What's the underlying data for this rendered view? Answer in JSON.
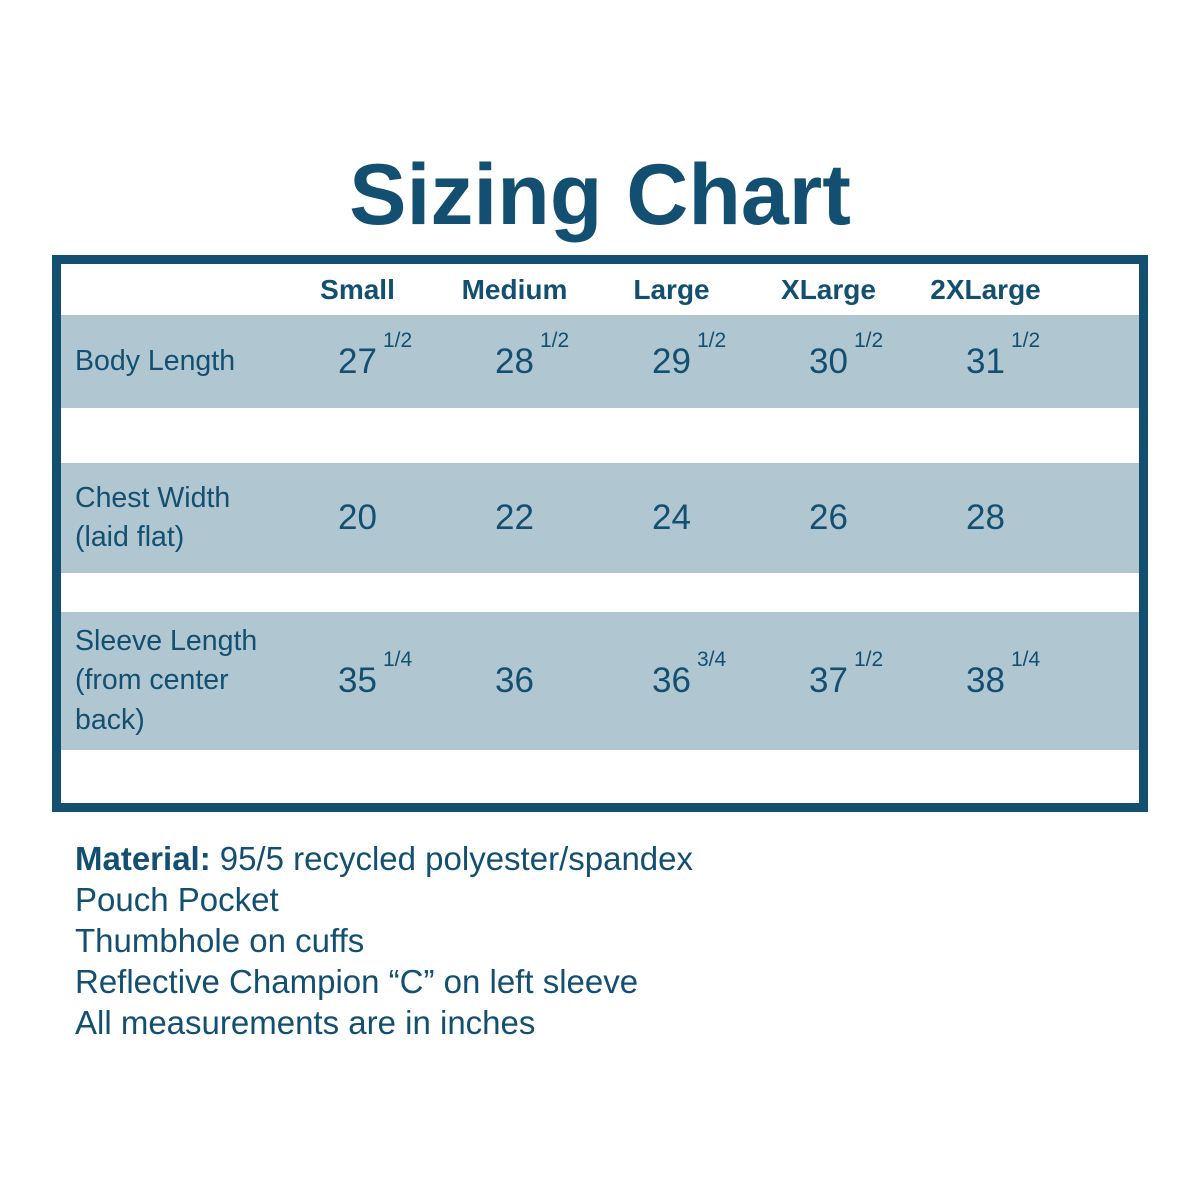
{
  "title": "Sizing Chart",
  "colors": {
    "primary": "#134F70",
    "row_shade": "#B0C7D2",
    "background": "#FFFFFF"
  },
  "chart_data": {
    "type": "table",
    "title": "Sizing Chart",
    "unit": "inches",
    "columns": [
      "Small",
      "Medium",
      "Large",
      "XLarge",
      "2XLarge"
    ],
    "rows": [
      {
        "label": "Body Length",
        "cells": [
          {
            "whole": "27",
            "frac": "1/2",
            "display": "27 1/2"
          },
          {
            "whole": "28",
            "frac": "1/2",
            "display": "28 1/2"
          },
          {
            "whole": "29",
            "frac": "1/2",
            "display": "29 1/2"
          },
          {
            "whole": "30",
            "frac": "1/2",
            "display": "30 1/2"
          },
          {
            "whole": "31",
            "frac": "1/2",
            "display": "31 1/2"
          }
        ],
        "values_numeric": [
          27.5,
          28.5,
          29.5,
          30.5,
          31.5
        ]
      },
      {
        "label": "Chest Width (laid flat)",
        "cells": [
          {
            "whole": "20",
            "frac": "",
            "display": "20"
          },
          {
            "whole": "22",
            "frac": "",
            "display": "22"
          },
          {
            "whole": "24",
            "frac": "",
            "display": "24"
          },
          {
            "whole": "26",
            "frac": "",
            "display": "26"
          },
          {
            "whole": "28",
            "frac": "",
            "display": "28"
          }
        ],
        "values_numeric": [
          20,
          22,
          24,
          26,
          28
        ]
      },
      {
        "label": "Sleeve Length (from center back)",
        "cells": [
          {
            "whole": "35",
            "frac": "1/4",
            "display": "35 1/4"
          },
          {
            "whole": "36",
            "frac": "",
            "display": "36"
          },
          {
            "whole": "36",
            "frac": "3/4",
            "display": "36 3/4"
          },
          {
            "whole": "37",
            "frac": "1/2",
            "display": "37 1/2"
          },
          {
            "whole": "38",
            "frac": "1/4",
            "display": "38 1/4"
          }
        ],
        "values_numeric": [
          35.25,
          36,
          36.75,
          37.5,
          38.25
        ]
      }
    ]
  },
  "notes": {
    "material_label": "Material:",
    "material_value": "95/5 recycled polyester/spandex",
    "lines": [
      "Pouch Pocket",
      "Thumbhole on cuffs",
      "Reflective Champion “C” on left sleeve",
      "All measurements are in inches"
    ]
  }
}
